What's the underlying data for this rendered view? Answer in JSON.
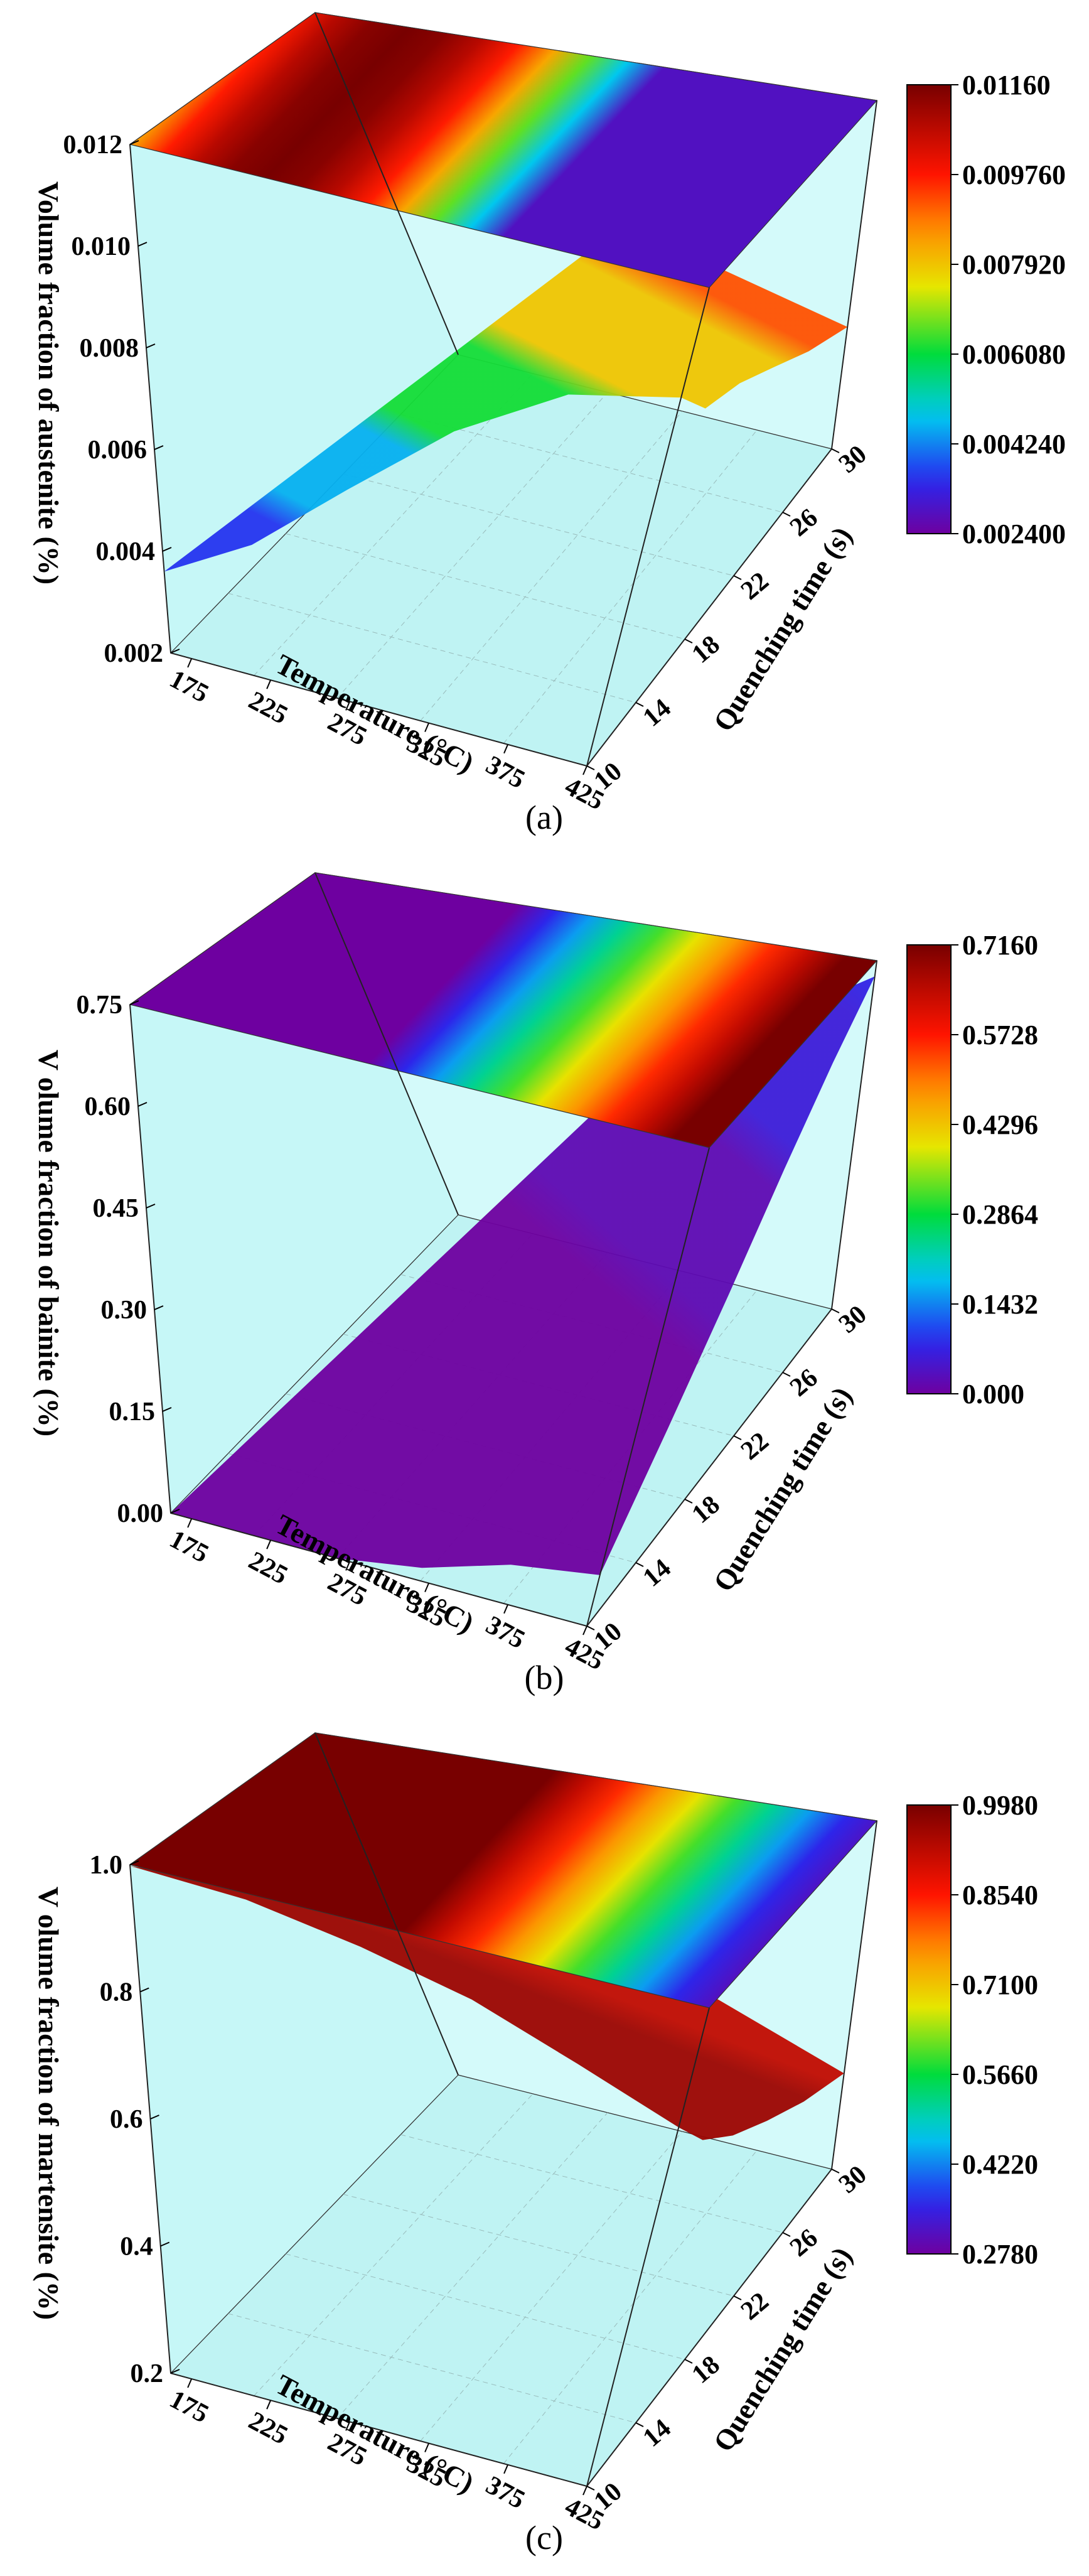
{
  "chart_data": [
    {
      "type": "surface",
      "panel_label": "(a)",
      "zlabel": "Volume fraction of austenite (%)",
      "xlabel": "Temperature (°C)",
      "ylabel": "Quenching time (s)",
      "z_ticks": [
        "0.002",
        "0.004",
        "0.006",
        "0.008",
        "0.010",
        "0.012"
      ],
      "zlim": [
        0.002,
        0.012
      ],
      "x_ticks": [
        "175",
        "225",
        "275",
        "325",
        "375",
        "425"
      ],
      "y_ticks": [
        "10",
        "14",
        "18",
        "22",
        "26",
        "30"
      ],
      "colorbar_ticks": [
        "0.01160",
        "0.009760",
        "0.007920",
        "0.006080",
        "0.004240",
        "0.002400"
      ],
      "colorbar_range": [
        0.0024,
        0.0116
      ],
      "projection": "top",
      "surface_edges": {
        "front_x": [
          175,
          225,
          275,
          325,
          375,
          425
        ],
        "front_z": [
          0.0036,
          0.0046,
          0.0062,
          0.0079,
          0.0092,
          0.0097
        ],
        "right_y": [
          10,
          14,
          18,
          22,
          26,
          30
        ],
        "right_z": [
          0.0097,
          0.0085,
          0.008,
          0.0072,
          0.0063,
          0.0055
        ]
      }
    },
    {
      "type": "surface",
      "panel_label": "(b)",
      "zlabel": "V olume fraction of bainite (%)",
      "xlabel": "Temperature (°C)",
      "ylabel": "Quenching time (s)",
      "z_ticks": [
        "0.00",
        "0.15",
        "0.30",
        "0.45",
        "0.60",
        "0.75"
      ],
      "zlim": [
        0.0,
        0.75
      ],
      "x_ticks": [
        "175",
        "225",
        "275",
        "325",
        "375",
        "425"
      ],
      "y_ticks": [
        "10",
        "14",
        "18",
        "22",
        "26",
        "30"
      ],
      "colorbar_ticks": [
        "0.7160",
        "0.5728",
        "0.4296",
        "0.2864",
        "0.1432",
        "0.000"
      ],
      "colorbar_range": [
        0.0,
        0.716
      ],
      "projection": "top",
      "surface_edges": {
        "front_x": [
          175,
          225,
          275,
          325,
          375,
          425
        ],
        "front_z": [
          0.0,
          0.0,
          0.0,
          0.02,
          0.06,
          0.08
        ],
        "right_y": [
          10,
          14,
          18,
          22,
          26,
          30
        ],
        "right_z": [
          0.08,
          0.22,
          0.36,
          0.5,
          0.62,
          0.716
        ]
      }
    },
    {
      "type": "surface",
      "panel_label": "(c)",
      "zlabel": "V olume fraction of martensite (%)",
      "xlabel": "Temperature (°C)",
      "ylabel": "Quenching time (s)",
      "z_ticks": [
        "0.2",
        "0.4",
        "0.6",
        "0.8",
        "1.0"
      ],
      "zlim": [
        0.2,
        1.0
      ],
      "x_ticks": [
        "175",
        "225",
        "275",
        "325",
        "375",
        "425"
      ],
      "y_ticks": [
        "10",
        "14",
        "18",
        "22",
        "26",
        "30"
      ],
      "colorbar_ticks": [
        "0.9980",
        "0.8540",
        "0.7100",
        "0.5660",
        "0.4220",
        "0.2780"
      ],
      "colorbar_range": [
        0.278,
        0.998
      ],
      "projection": "top",
      "surface_edges": {
        "front_x": [
          175,
          225,
          275,
          325,
          375,
          425
        ],
        "front_z": [
          0.998,
          0.99,
          0.96,
          0.92,
          0.86,
          0.8
        ],
        "right_y": [
          10,
          14,
          18,
          22,
          26,
          30
        ],
        "right_z": [
          0.8,
          0.7,
          0.62,
          0.55,
          0.48,
          0.42
        ]
      }
    }
  ]
}
